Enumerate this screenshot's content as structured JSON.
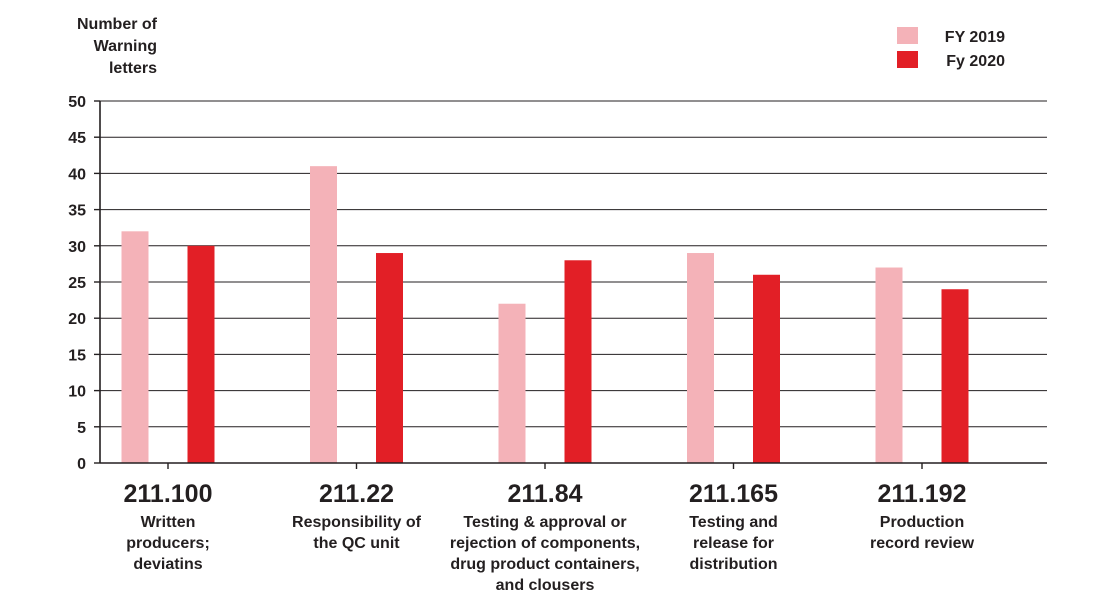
{
  "chart_data": {
    "type": "bar",
    "ylabel_lines": [
      "Number of",
      "Warning",
      "letters"
    ],
    "ylim": [
      0,
      50
    ],
    "yticks": [
      0,
      5,
      10,
      15,
      20,
      25,
      30,
      35,
      40,
      45,
      50
    ],
    "grid": true,
    "legend_position": "top-right",
    "categories": [
      {
        "code": "211.100",
        "desc": [
          "Written",
          "producers;",
          "deviatins"
        ]
      },
      {
        "code": "211.22",
        "desc": [
          "Responsibility of",
          "the QC unit"
        ]
      },
      {
        "code": "211.84",
        "desc": [
          "Testing & approval or",
          "rejection of components,",
          "drug product containers,",
          "and clousers"
        ]
      },
      {
        "code": "211.165",
        "desc": [
          "Testing and",
          "release for",
          "distribution"
        ]
      },
      {
        "code": "211.192",
        "desc": [
          "Production",
          "record review"
        ]
      }
    ],
    "series": [
      {
        "name": "FY 2019",
        "color": "#f4b2b8",
        "values": [
          32,
          41,
          22,
          29,
          27
        ]
      },
      {
        "name": "Fy 2020",
        "color": "#e21f26",
        "values": [
          30,
          29,
          28,
          26,
          24
        ]
      }
    ]
  }
}
